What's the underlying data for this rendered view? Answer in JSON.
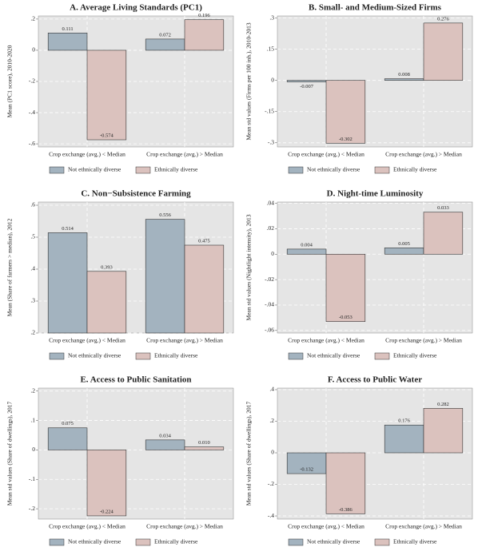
{
  "chart_data": [
    {
      "type": "bar",
      "title": "A. Average Living Standards (PC1)",
      "ylabel": "Mean (PC1 score), 2010-2020",
      "categories": [
        "Crop exchange (avg.) < Median",
        "Crop exchange (avg.) > Median"
      ],
      "series": [
        {
          "name": "Not ethnically diverse",
          "color": "#a3b3bf",
          "values": [
            0.111,
            0.072
          ],
          "value_labels": [
            "0.111",
            "0.072"
          ]
        },
        {
          "name": "Ethnically diverse",
          "color": "#dbc2be",
          "values": [
            -0.574,
            0.196
          ],
          "value_labels": [
            "-0.574",
            "0.196"
          ]
        }
      ],
      "ylim": [
        -0.62,
        0.22
      ],
      "yticks": [
        {
          "value": 0.2,
          "label": ".2"
        },
        0,
        {
          "value": -0.2,
          "label": "-.2"
        },
        {
          "value": -0.4,
          "label": "-.4"
        },
        {
          "value": -0.6,
          "label": "-.6"
        }
      ],
      "grid": true
    },
    {
      "type": "bar",
      "title": "B. Small- and Medium-Sized Firms",
      "ylabel": "Mean std values (Firms per 100 inh.), 2010-2013",
      "categories": [
        "Crop exchange (avg.) < Median",
        "Crop exchange (avg.) > Median"
      ],
      "series": [
        {
          "name": "Not ethnically diverse",
          "color": "#a3b3bf",
          "values": [
            -0.007,
            0.008
          ],
          "value_labels": [
            "-0.007",
            "0.008"
          ]
        },
        {
          "name": "Ethnically diverse",
          "color": "#dbc2be",
          "values": [
            -0.302,
            0.276
          ],
          "value_labels": [
            "-0.302",
            "0.276"
          ]
        }
      ],
      "ylim": [
        -0.32,
        0.31
      ],
      "yticks": [
        {
          "value": 0.3,
          "label": ".3"
        },
        {
          "value": 0.15,
          "label": ".15"
        },
        0,
        {
          "value": -0.15,
          "label": "-.15"
        },
        {
          "value": -0.3,
          "label": "-.3"
        }
      ],
      "grid": true
    },
    {
      "type": "bar",
      "title": "C. Non−Subsistence Farming",
      "ylabel": "Mean (Share of farmers > median), 2012",
      "categories": [
        "Crop exchange (avg.) < Median",
        "Crop exchange (avg.) > Median"
      ],
      "series": [
        {
          "name": "Not ethnically diverse",
          "color": "#a3b3bf",
          "values": [
            0.514,
            0.556
          ],
          "value_labels": [
            "0.514",
            "0.556"
          ]
        },
        {
          "name": "Ethnically diverse",
          "color": "#dbc2be",
          "values": [
            0.393,
            0.475
          ],
          "value_labels": [
            "0.393",
            "0.475"
          ]
        }
      ],
      "ylim": [
        0.2,
        0.61
      ],
      "yticks": [
        {
          "value": 0.6,
          "label": ".6"
        },
        {
          "value": 0.5,
          "label": ".5"
        },
        {
          "value": 0.4,
          "label": ".4"
        },
        {
          "value": 0.3,
          "label": ".3"
        },
        {
          "value": 0.2,
          "label": ".2"
        }
      ],
      "grid": true
    },
    {
      "type": "bar",
      "title": "D. Night-time Luminosity",
      "ylabel": "Mean std values (Nightlight intensity), 2013",
      "categories": [
        "Crop exchange (avg.) < Median",
        "Crop exchange (avg.) > Median"
      ],
      "series": [
        {
          "name": "Not ethnically diverse",
          "color": "#a3b3bf",
          "values": [
            0.004,
            0.005
          ],
          "value_labels": [
            "0.004",
            "0.005"
          ]
        },
        {
          "name": "Ethnically diverse",
          "color": "#dbc2be",
          "values": [
            -0.053,
            0.033
          ],
          "value_labels": [
            "-0.053",
            "0.033"
          ]
        }
      ],
      "ylim": [
        -0.062,
        0.041
      ],
      "yticks": [
        {
          "value": 0.04,
          "label": ".04"
        },
        {
          "value": 0.02,
          "label": ".02"
        },
        0,
        {
          "value": -0.02,
          "label": "-.02"
        },
        {
          "value": -0.04,
          "label": "-.04"
        },
        {
          "value": -0.06,
          "label": "-.06"
        }
      ],
      "grid": true
    },
    {
      "type": "bar",
      "title": "E. Access to Public Sanitation",
      "ylabel": "Mean std values (Share of dwellings), 2017",
      "categories": [
        "Crop exchange (avg.) < Median",
        "Crop exchange (avg.) > Median"
      ],
      "series": [
        {
          "name": "Not ethnically diverse",
          "color": "#a3b3bf",
          "values": [
            0.075,
            0.034
          ],
          "value_labels": [
            "0.075",
            "0.034"
          ]
        },
        {
          "name": "Ethnically diverse",
          "color": "#dbc2be",
          "values": [
            -0.224,
            0.01
          ],
          "value_labels": [
            "-0.224",
            "0.010"
          ]
        }
      ],
      "ylim": [
        -0.235,
        0.21
      ],
      "yticks": [
        {
          "value": 0.2,
          "label": ".2"
        },
        {
          "value": 0.1,
          "label": ".1"
        },
        0,
        {
          "value": -0.1,
          "label": "-.1"
        },
        {
          "value": -0.2,
          "label": "-.2"
        }
      ],
      "grid": true
    },
    {
      "type": "bar",
      "title": "F. Access to Public Water",
      "ylabel": "Mean std values (Share of dwellings), 2017",
      "categories": [
        "Crop exchange (avg.) < Median",
        "Crop exchange (avg.) > Median"
      ],
      "series": [
        {
          "name": "Not ethnically diverse",
          "color": "#a3b3bf",
          "values": [
            -0.132,
            0.176
          ],
          "value_labels": [
            "-0.132",
            "0.176"
          ]
        },
        {
          "name": "Ethnically diverse",
          "color": "#dbc2be",
          "values": [
            -0.386,
            0.282
          ],
          "value_labels": [
            "-0.386",
            "0.282"
          ]
        }
      ],
      "ylim": [
        -0.42,
        0.41
      ],
      "yticks": [
        {
          "value": 0.4,
          "label": ".4"
        },
        {
          "value": 0.2,
          "label": ".2"
        },
        0,
        {
          "value": -0.2,
          "label": "-.2"
        },
        {
          "value": -0.4,
          "label": "-.4"
        }
      ],
      "grid": true
    }
  ]
}
